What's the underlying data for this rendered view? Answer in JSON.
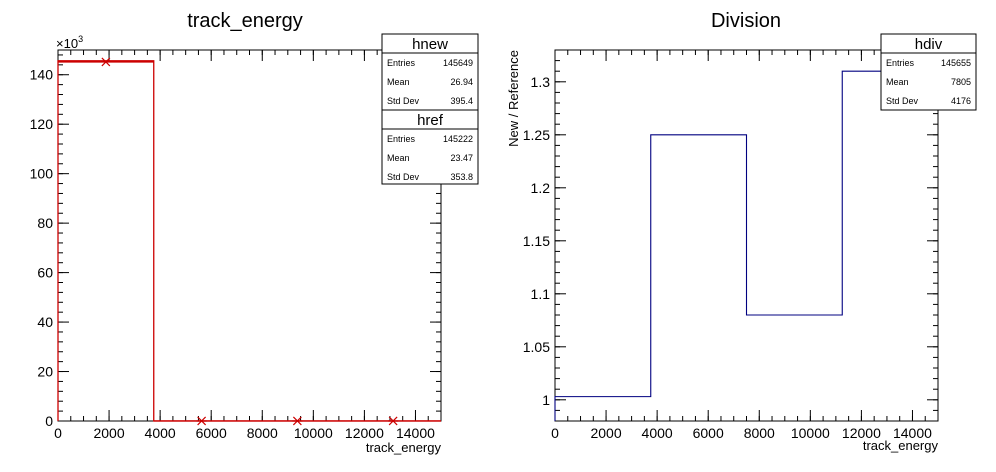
{
  "chart_data": [
    {
      "type": "histogram",
      "title": "track_energy",
      "xlabel": "track_energy",
      "ylabel": "",
      "xlim": [
        0,
        15000
      ],
      "ylim": [
        0,
        150
      ],
      "y_multiplier": "×10",
      "y_multiplier_exp": "3",
      "x_ticks": [
        "0",
        "2000",
        "4000",
        "6000",
        "8000",
        "10000",
        "12000",
        "14000"
      ],
      "y_ticks": [
        "0",
        "20",
        "40",
        "60",
        "80",
        "100",
        "120",
        "140"
      ],
      "bin_edges": [
        0,
        3750,
        7500,
        11250,
        15000
      ],
      "series": [
        {
          "name": "hnew",
          "values": [
            145.62,
            0.01,
            0.01,
            0.01
          ],
          "color": "#cc0000",
          "style": "line"
        },
        {
          "name": "href",
          "values": [
            145.19,
            0.008,
            0.009,
            0.007
          ],
          "color": "#cc0000",
          "style": "markers",
          "marker_x": [
            1875,
            5625,
            9375,
            13125
          ]
        }
      ],
      "stats": [
        {
          "name": "hnew",
          "rows": [
            {
              "key": "Entries",
              "value": "145649"
            },
            {
              "key": "Mean",
              "value": "26.94"
            },
            {
              "key": "Std Dev",
              "value": "395.4"
            }
          ]
        },
        {
          "name": "href",
          "rows": [
            {
              "key": "Entries",
              "value": "145222"
            },
            {
              "key": "Mean",
              "value": "23.47"
            },
            {
              "key": "Std Dev",
              "value": "353.8"
            }
          ]
        }
      ]
    },
    {
      "type": "histogram",
      "title": "Division",
      "xlabel": "track_energy",
      "ylabel": "New / Reference",
      "xlim": [
        0,
        15000
      ],
      "ylim": [
        0.98,
        1.33
      ],
      "x_ticks": [
        "0",
        "2000",
        "4000",
        "6000",
        "8000",
        "10000",
        "12000",
        "14000"
      ],
      "y_ticks": [
        "1",
        "1.05",
        "1.1",
        "1.15",
        "1.2",
        "1.25",
        "1.3"
      ],
      "bin_edges": [
        0,
        3750,
        7500,
        11250,
        15000
      ],
      "series": [
        {
          "name": "hdiv",
          "values": [
            1.003,
            1.25,
            1.08,
            1.31
          ],
          "color": "#000080",
          "style": "line"
        }
      ],
      "stats": [
        {
          "name": "hdiv",
          "rows": [
            {
              "key": "Entries",
              "value": "145655"
            },
            {
              "key": "Mean",
              "value": "7805"
            },
            {
              "key": "Std Dev",
              "value": "4176"
            }
          ]
        }
      ]
    }
  ]
}
